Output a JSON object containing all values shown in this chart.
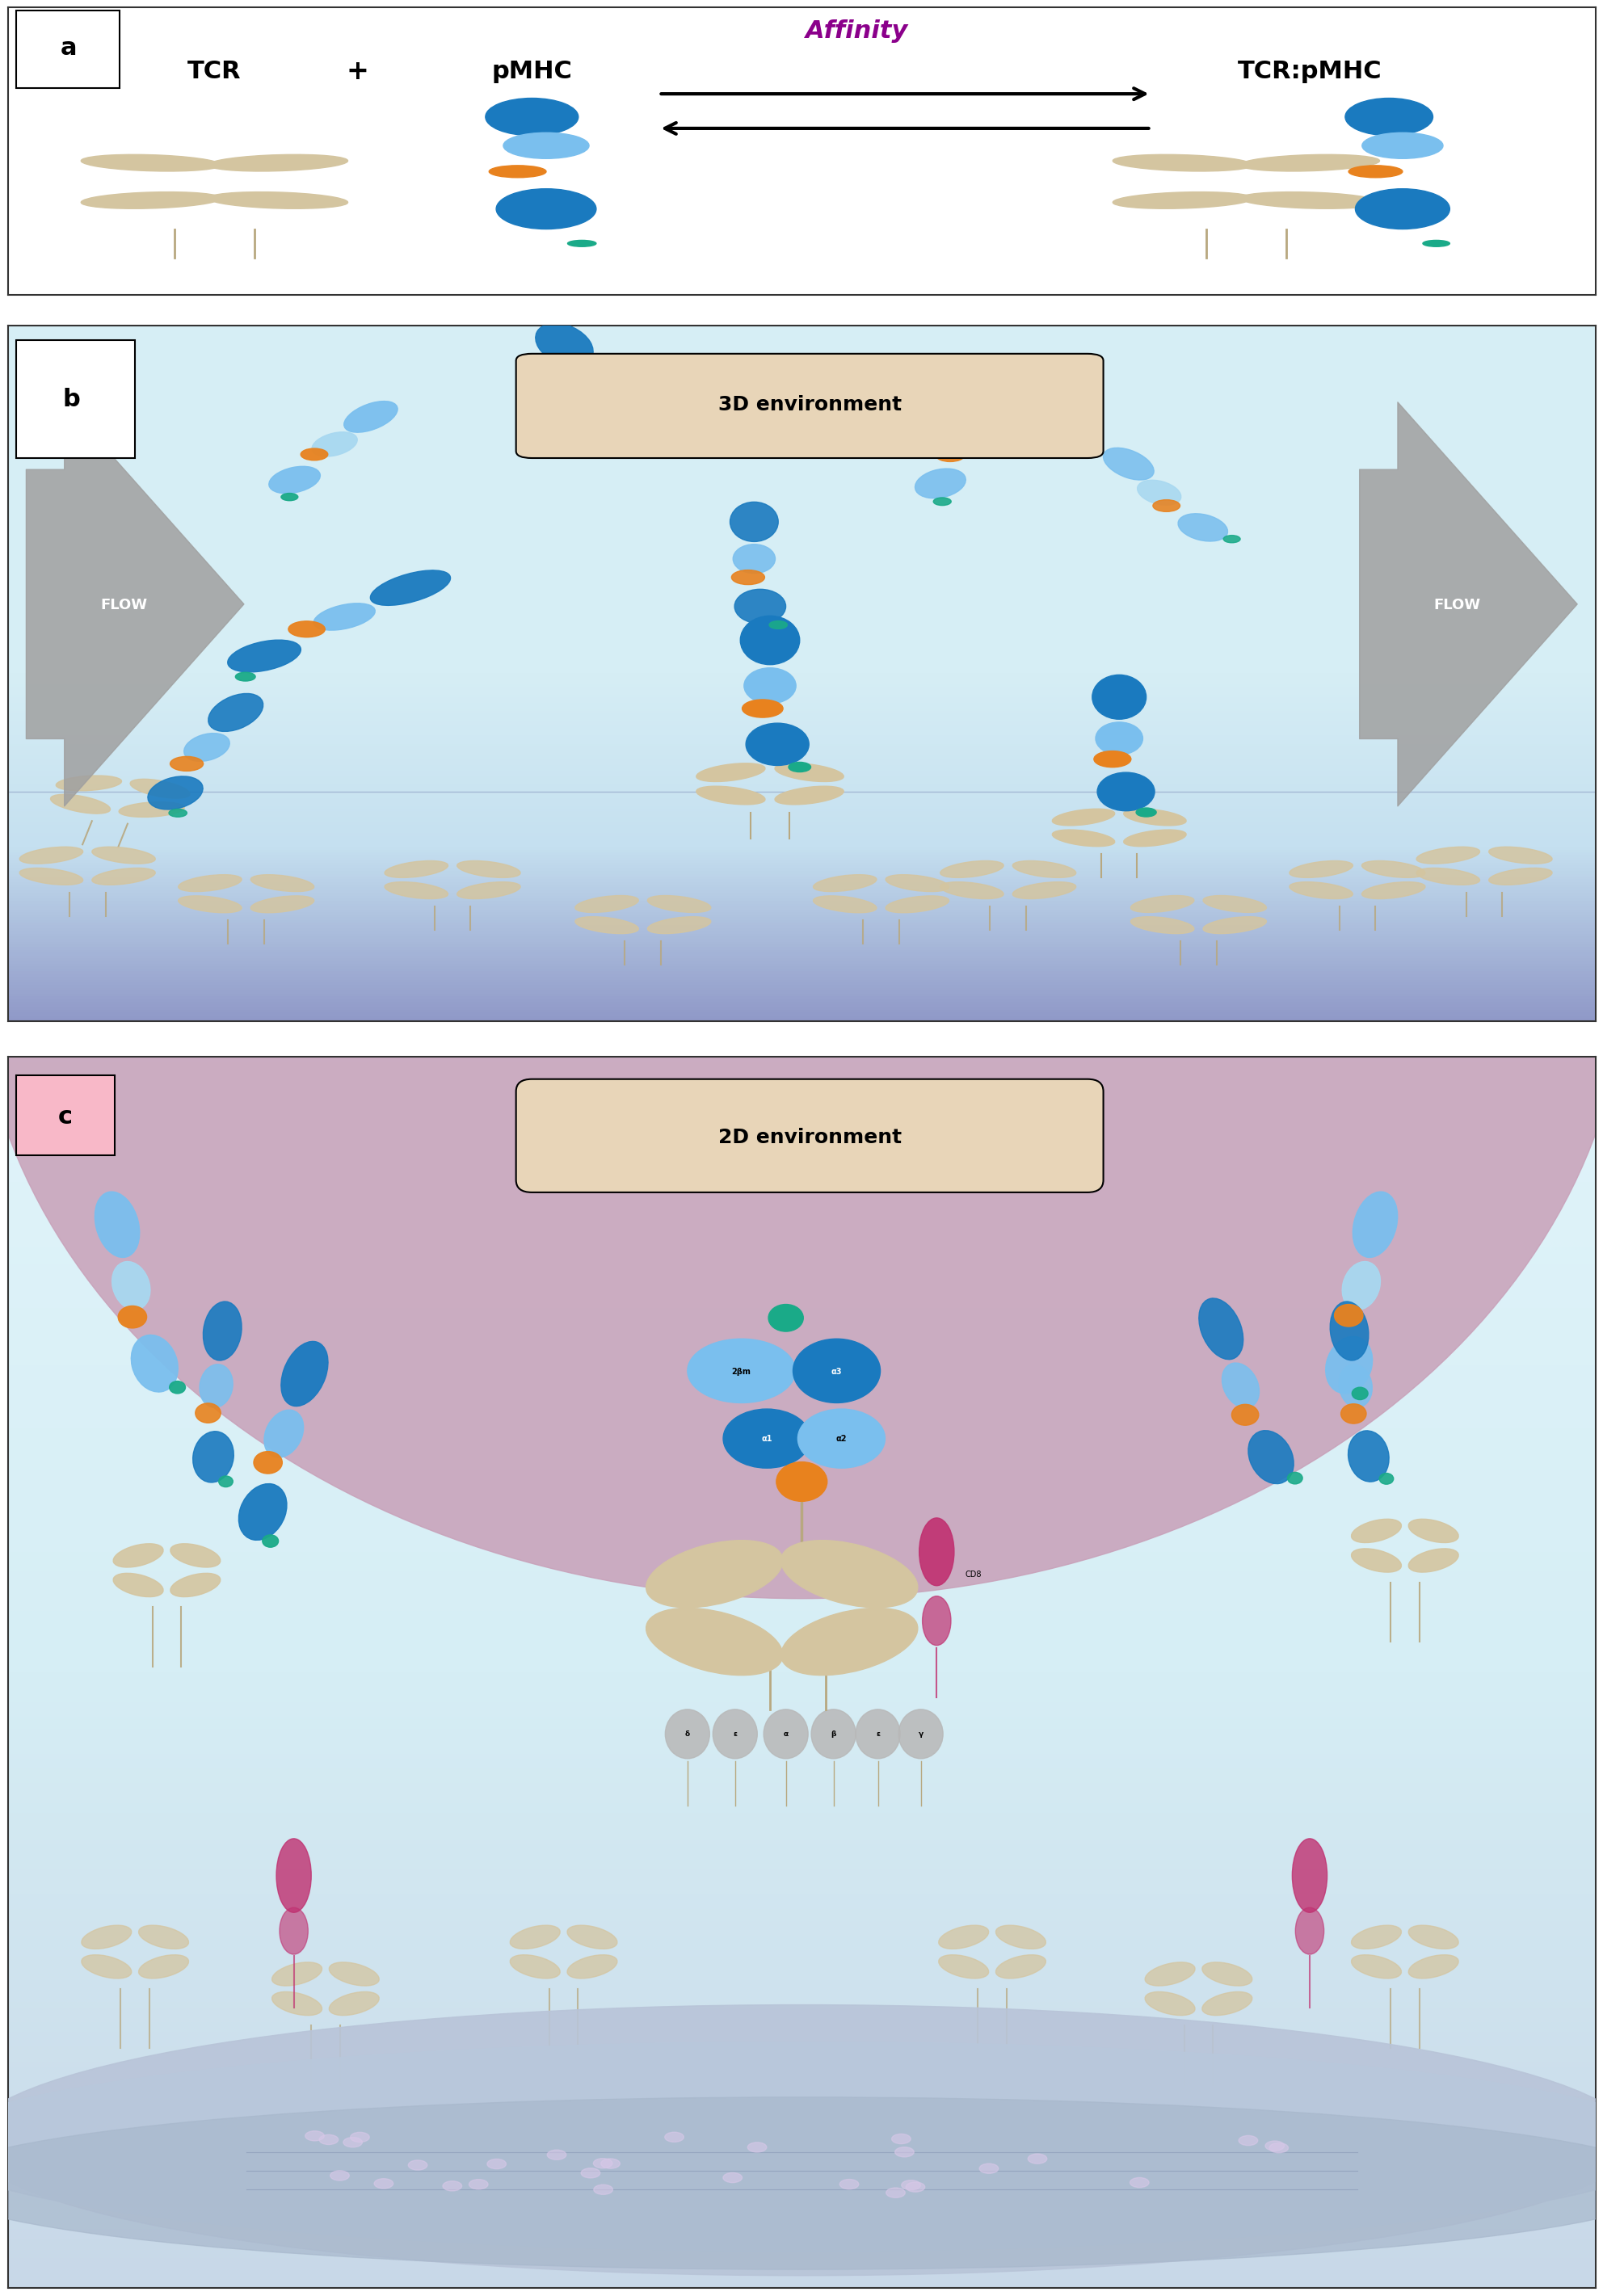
{
  "panel_a": {
    "bg_color": "#ffffff",
    "label": "a",
    "title_affinity": "Affinity",
    "title_color": "#8B008B",
    "tcr_label": "TCR",
    "plus_label": "+",
    "pmhc_label": "pMHC",
    "complex_label": "TCR:pMHC",
    "tcr_color": "#d4c5a0",
    "mhc_blue": "#3399dd",
    "mhc_light": "#7abfee",
    "peptide_orange": "#e8821e",
    "peptide_teal": "#1aaa88"
  },
  "panel_b": {
    "bg_top": "#d6eef5",
    "bg_bottom": "#9099c8",
    "label": "b",
    "box_label": "3D environment",
    "box_bg": "#e8d5b8",
    "flow_color": "#aaaaaa",
    "flow_label": "FLOW"
  },
  "panel_c": {
    "bg_color": "#d6eef5",
    "cell_color": "#c8a0b8",
    "membrane_color": "#b0b8d8",
    "label": "c",
    "box_label": "2D environment",
    "box_bg": "#e8d5b8",
    "cd8_color": "#c03070",
    "cd8_label": "CD8",
    "alpha_labels": [
      "δ",
      "ε",
      "α",
      "β",
      "ε",
      "γ"
    ],
    "b2m_label": "2βm",
    "a3_label": "α3",
    "a1_label": "α1",
    "a2_label": "α2"
  },
  "colors": {
    "blue_dark": "#1a7abf",
    "blue_mid": "#3399dd",
    "blue_light": "#7abfee",
    "blue_pale": "#a8d8f0",
    "teal": "#1aaa88",
    "teal_dark": "#0d7a5e",
    "orange": "#e8821e",
    "beige": "#d4c5a0",
    "beige_dark": "#b8a880",
    "white": "#ffffff",
    "black": "#000000",
    "gray": "#888888",
    "gray_light": "#cccccc",
    "purple": "#8B008B",
    "pink_cell": "#daa0c0",
    "membrane_blue": "#b0b8d8"
  },
  "figure_bg": "#ffffff",
  "border_color": "#333333"
}
